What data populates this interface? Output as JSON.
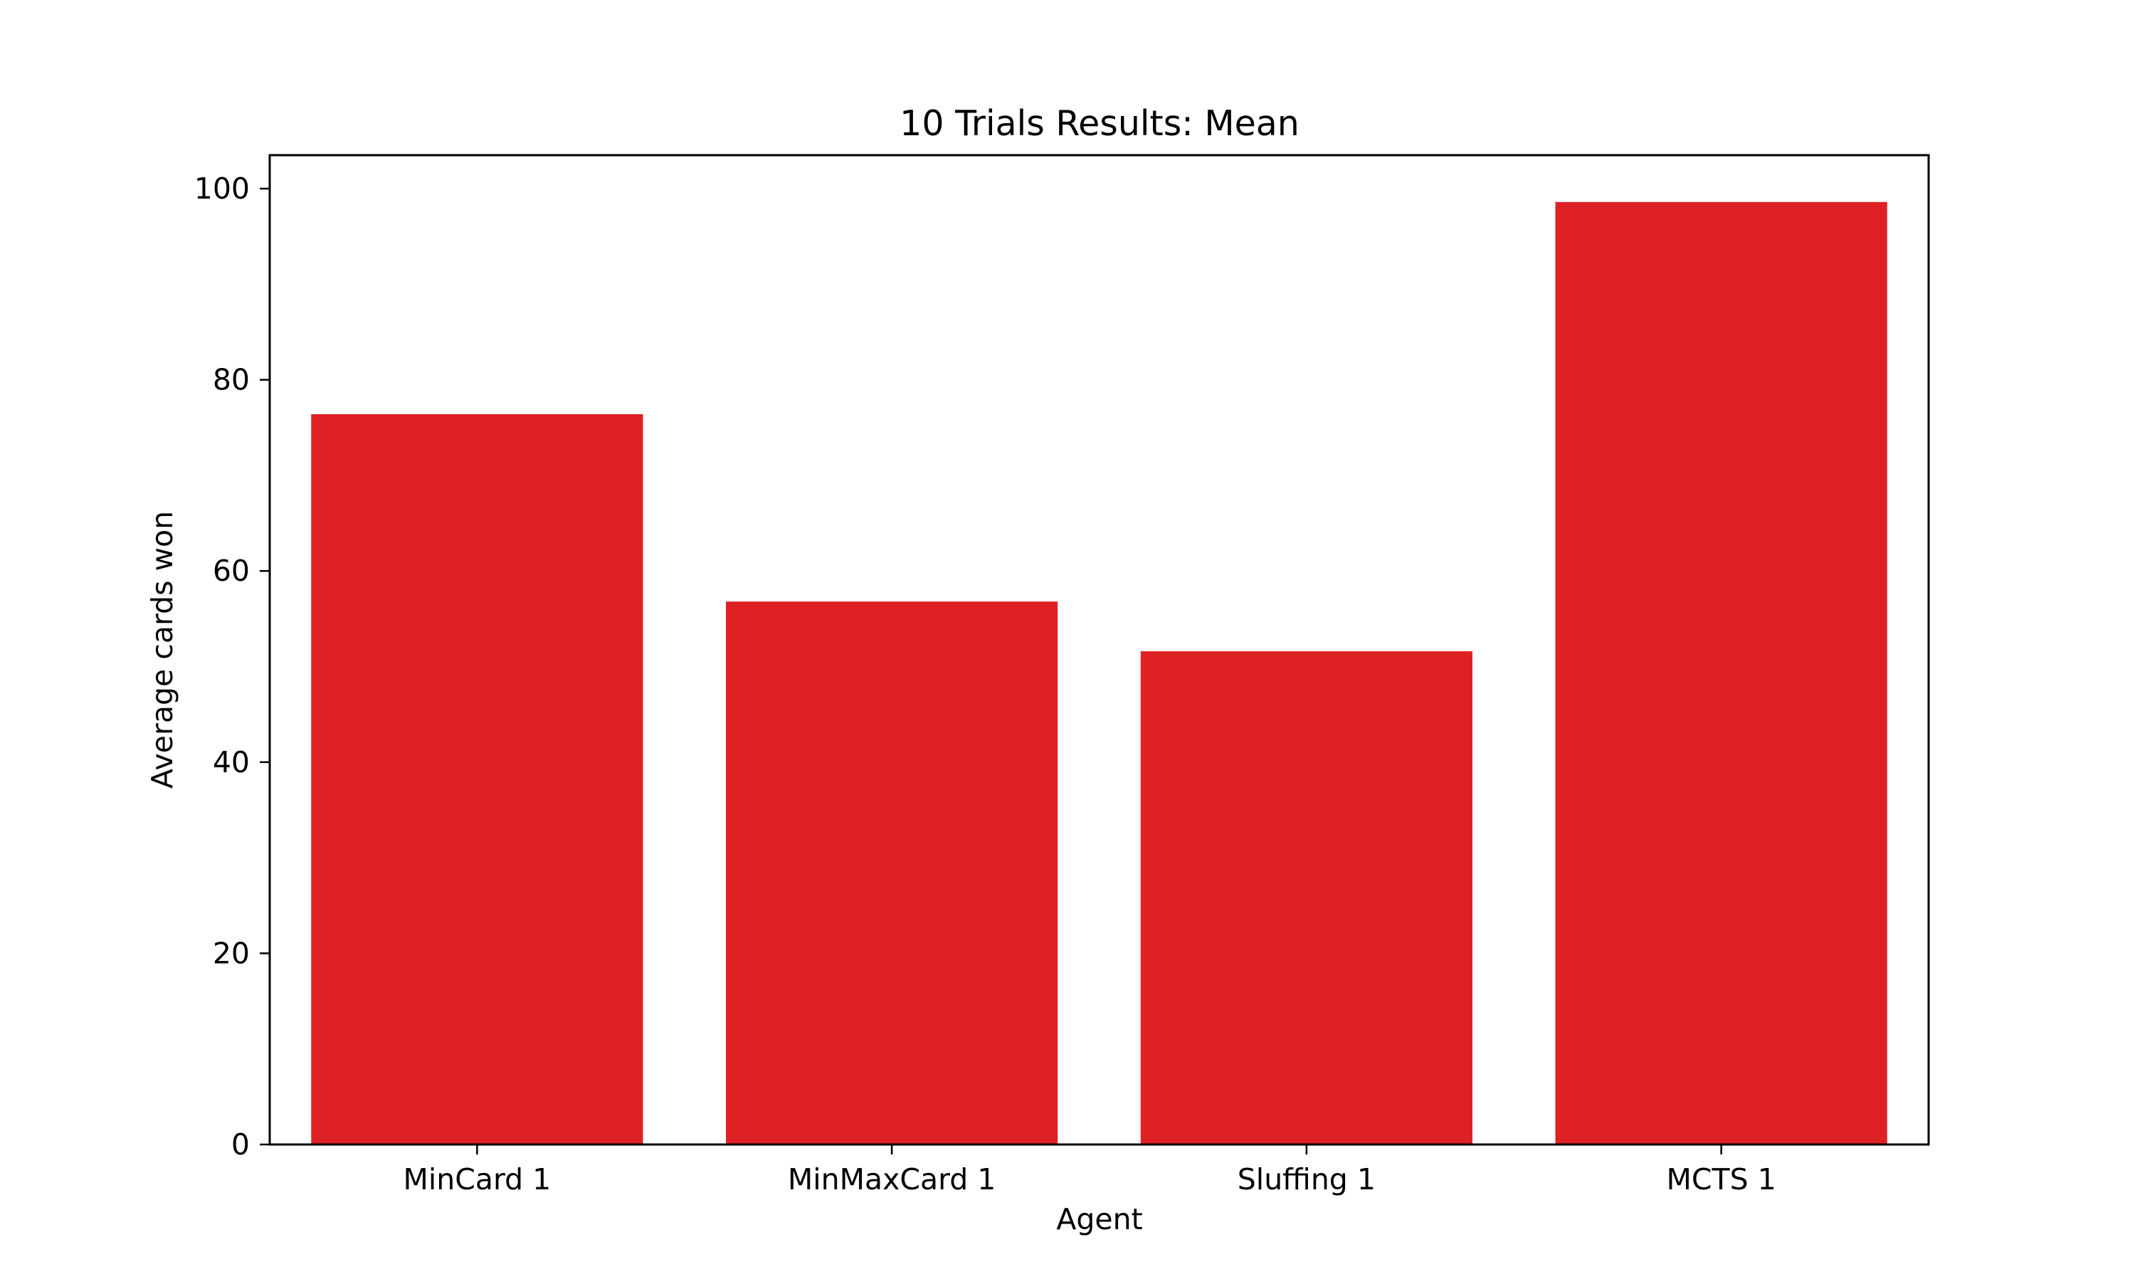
{
  "chart_data": {
    "type": "bar",
    "title": "10 Trials Results: Mean",
    "xlabel": "Agent",
    "ylabel": "Average cards won",
    "categories": [
      "MinCard 1",
      "MinMaxCard 1",
      "Sluffing 1",
      "MCTS 1"
    ],
    "values": [
      76.4,
      56.8,
      51.6,
      98.6
    ],
    "ylim": [
      0,
      103.5
    ],
    "yticks": [
      0,
      20,
      40,
      60,
      80,
      100
    ],
    "bar_color": "#de2124",
    "grid": false,
    "legend": "none"
  }
}
